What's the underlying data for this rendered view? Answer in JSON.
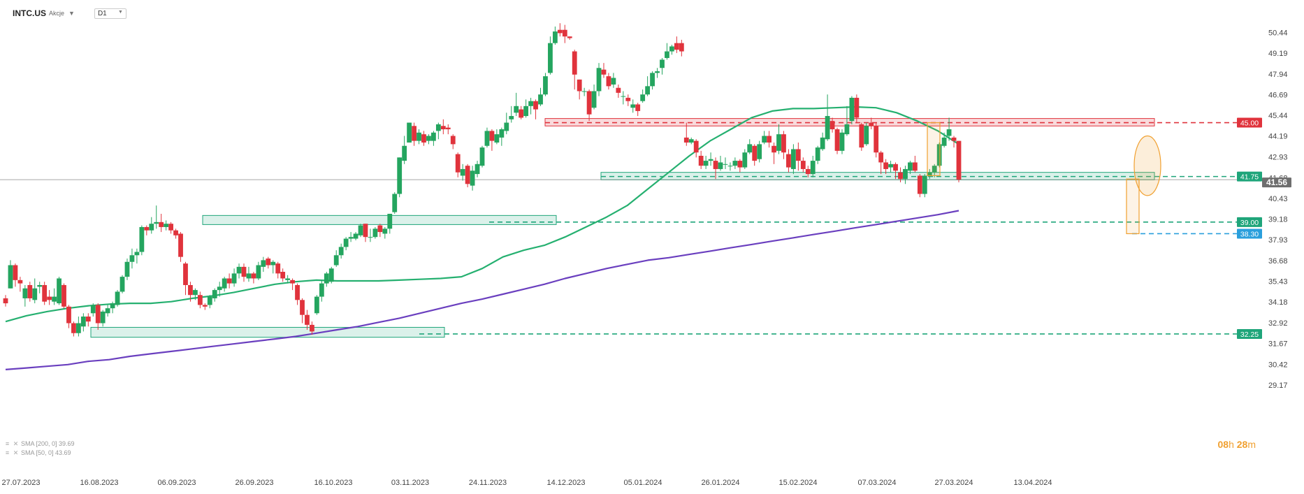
{
  "header": {
    "symbol": "INTC.US",
    "asset_type": "Akcje",
    "timeframe": "D1"
  },
  "legend": [
    {
      "label": "SMA [200, 0] 39.69"
    },
    {
      "label": "SMA [50, 0] 43.69"
    }
  ],
  "timer": {
    "hours": "08",
    "hours_unit": "h",
    "minutes": "28",
    "minutes_unit": "m"
  },
  "colors": {
    "up": "#24a55f",
    "down": "#e0333c",
    "sma50": "#25b070",
    "sma200": "#6a3fbf",
    "resistance": "#e0333c",
    "support": "#1fa57a",
    "target": "#2a9fdc",
    "highlight": "#f0a030"
  },
  "chart_data": {
    "type": "candlestick",
    "y_ticks": [
      29.17,
      30.42,
      31.67,
      32.92,
      34.18,
      35.43,
      36.68,
      37.93,
      39.18,
      40.43,
      41.68,
      42.93,
      44.19,
      45.44,
      46.69,
      47.94,
      49.19,
      50.44
    ],
    "ylim": [
      28.8,
      51.3
    ],
    "x_ticks": [
      "27.07.2023",
      "16.08.2023",
      "06.09.2023",
      "26.09.2023",
      "16.10.2023",
      "03.11.2023",
      "24.11.2023",
      "14.12.2023",
      "05.01.2024",
      "26.01.2024",
      "15.02.2024",
      "07.03.2024",
      "27.03.2024",
      "13.04.2024"
    ],
    "level_labels": [
      "45.00",
      "41.75",
      "41.56",
      "39.00",
      "38.30",
      "32.25"
    ],
    "levels": [
      {
        "value": 45.0,
        "kind": "resistance"
      },
      {
        "value": 41.75,
        "kind": "support"
      },
      {
        "value": 39.0,
        "kind": "support"
      },
      {
        "value": 38.3,
        "kind": "target"
      },
      {
        "value": 32.25,
        "kind": "support"
      }
    ],
    "current_price": 41.56,
    "zones": [
      {
        "kind": "resistance",
        "from": 44.8,
        "to": 45.25
      },
      {
        "kind": "support",
        "from": 41.55,
        "to": 42.0
      },
      {
        "kind": "support",
        "from": 38.85,
        "to": 39.4
      },
      {
        "kind": "support",
        "from": 32.05,
        "to": 32.65
      }
    ],
    "series": [
      {
        "name": "SMA [200, 0]",
        "values": [
          30.1,
          30.2,
          30.3,
          30.4,
          30.6,
          30.7,
          30.9,
          31.05,
          31.2,
          31.35,
          31.5,
          31.65,
          31.8,
          31.95,
          32.1,
          32.3,
          32.5,
          32.7,
          32.95,
          33.2,
          33.5,
          33.8,
          34.1,
          34.35,
          34.65,
          34.95,
          35.25,
          35.6,
          35.9,
          36.2,
          36.45,
          36.7,
          36.85,
          37.05,
          37.25,
          37.45,
          37.65,
          37.85,
          38.05,
          38.25,
          38.45,
          38.65,
          38.85,
          39.05,
          39.25,
          39.45,
          39.69
        ]
      },
      {
        "name": "SMA [50, 0]",
        "values": [
          33.0,
          33.35,
          33.6,
          33.8,
          33.95,
          34.05,
          34.1,
          34.1,
          34.2,
          34.4,
          34.55,
          34.75,
          35.0,
          35.25,
          35.4,
          35.5,
          35.45,
          35.45,
          35.45,
          35.5,
          35.55,
          35.6,
          35.7,
          36.2,
          36.9,
          37.3,
          37.6,
          38.1,
          38.7,
          39.3,
          40.0,
          41.0,
          42.0,
          43.0,
          43.9,
          44.6,
          45.3,
          45.7,
          45.85,
          45.85,
          45.9,
          45.95,
          45.9,
          45.6,
          45.1,
          44.5,
          43.7
        ]
      }
    ],
    "candles": [
      [
        34.4,
        34.1,
        34.6,
        33.9
      ],
      [
        35.0,
        36.4,
        36.7,
        35.0
      ],
      [
        36.4,
        35.5,
        36.5,
        35.1
      ],
      [
        35.5,
        35.3,
        35.7,
        34.8
      ],
      [
        34.4,
        35.0,
        35.2,
        33.9
      ],
      [
        35.2,
        34.4,
        35.4,
        34.2
      ],
      [
        34.3,
        35.0,
        35.6,
        34.1
      ],
      [
        35.1,
        35.2,
        35.4,
        34.7
      ],
      [
        35.2,
        34.2,
        35.4,
        34.0
      ],
      [
        34.5,
        34.3,
        34.9,
        34.0
      ],
      [
        34.2,
        34.5,
        35.0,
        34.0
      ],
      [
        34.1,
        35.6,
        35.7,
        34.0
      ],
      [
        35.2,
        33.9,
        35.3,
        33.8
      ],
      [
        33.9,
        32.9,
        34.0,
        32.6
      ],
      [
        32.9,
        32.3,
        33.0,
        32.1
      ],
      [
        32.3,
        32.9,
        33.3,
        32.1
      ],
      [
        32.7,
        33.3,
        33.5,
        32.4
      ],
      [
        33.3,
        33.0,
        33.5,
        32.7
      ],
      [
        33.5,
        34.0,
        34.1,
        33.3
      ],
      [
        34.0,
        32.9,
        34.1,
        32.5
      ],
      [
        32.9,
        33.6,
        33.7,
        32.7
      ],
      [
        33.5,
        33.8,
        34.0,
        33.3
      ],
      [
        33.8,
        34.1,
        34.2,
        33.5
      ],
      [
        34.0,
        34.8,
        34.9,
        33.9
      ],
      [
        34.8,
        35.7,
        35.8,
        34.7
      ],
      [
        35.7,
        36.6,
        36.8,
        35.5
      ],
      [
        36.6,
        37.0,
        37.4,
        36.2
      ],
      [
        37.0,
        37.2,
        37.4,
        36.5
      ],
      [
        37.2,
        38.7,
        38.8,
        37.0
      ],
      [
        38.7,
        38.5,
        38.8,
        38.2
      ],
      [
        38.5,
        38.9,
        39.3,
        38.3
      ],
      [
        38.9,
        39.0,
        40.0,
        38.6
      ],
      [
        39.0,
        38.7,
        39.5,
        38.4
      ],
      [
        38.7,
        38.9,
        39.1,
        38.5
      ],
      [
        38.9,
        38.5,
        39.0,
        38.3
      ],
      [
        38.5,
        38.2,
        38.6,
        38.0
      ],
      [
        38.3,
        36.9,
        38.4,
        36.6
      ],
      [
        36.5,
        35.2,
        36.6,
        34.6
      ],
      [
        35.2,
        34.6,
        35.4,
        34.2
      ],
      [
        34.6,
        34.9,
        35.0,
        34.3
      ],
      [
        34.6,
        34.0,
        34.8,
        33.8
      ],
      [
        34.0,
        33.9,
        34.1,
        33.7
      ],
      [
        34.0,
        34.5,
        34.6,
        33.8
      ],
      [
        34.4,
        34.9,
        35.0,
        34.2
      ],
      [
        34.9,
        35.1,
        35.4,
        34.5
      ],
      [
        35.0,
        35.6,
        35.7,
        34.8
      ],
      [
        35.6,
        35.3,
        35.9,
        35.0
      ],
      [
        35.3,
        35.9,
        36.2,
        35.1
      ],
      [
        35.9,
        36.3,
        36.5,
        35.6
      ],
      [
        36.3,
        35.7,
        36.5,
        35.4
      ],
      [
        35.6,
        35.9,
        36.3,
        35.4
      ],
      [
        35.9,
        35.6,
        36.0,
        35.3
      ],
      [
        35.6,
        36.4,
        36.6,
        35.5
      ],
      [
        36.3,
        36.7,
        36.9,
        36.0
      ],
      [
        36.8,
        36.4,
        36.9,
        36.2
      ],
      [
        36.4,
        36.6,
        36.7,
        35.9
      ],
      [
        36.5,
        35.9,
        36.6,
        35.6
      ],
      [
        36.0,
        35.6,
        36.2,
        35.4
      ],
      [
        35.5,
        35.6,
        35.8,
        35.3
      ],
      [
        35.5,
        35.3,
        35.6,
        34.9
      ],
      [
        35.2,
        34.3,
        35.3,
        34.0
      ],
      [
        34.3,
        33.4,
        34.4,
        32.9
      ],
      [
        33.4,
        32.8,
        33.7,
        32.5
      ],
      [
        32.8,
        32.4,
        33.0,
        32.2
      ],
      [
        33.5,
        34.5,
        34.6,
        33.4
      ],
      [
        34.5,
        35.3,
        35.5,
        34.2
      ],
      [
        35.3,
        35.9,
        36.0,
        35.1
      ],
      [
        35.4,
        36.2,
        36.3,
        35.3
      ],
      [
        36.4,
        37.0,
        37.3,
        36.3
      ],
      [
        37.0,
        37.5,
        37.7,
        36.8
      ],
      [
        37.5,
        38.0,
        38.1,
        37.3
      ],
      [
        38.0,
        38.1,
        38.4,
        37.8
      ],
      [
        38.0,
        38.3,
        38.4,
        37.9
      ],
      [
        38.2,
        38.8,
        38.9,
        38.1
      ],
      [
        38.9,
        38.1,
        38.9,
        37.8
      ],
      [
        38.1,
        38.1,
        38.6,
        37.8
      ],
      [
        38.1,
        38.6,
        38.7,
        38.0
      ],
      [
        38.8,
        38.4,
        38.9,
        38.1
      ],
      [
        38.3,
        38.6,
        38.7,
        38.0
      ],
      [
        38.6,
        39.5,
        39.5,
        38.3
      ],
      [
        39.6,
        40.7,
        40.8,
        39.5
      ],
      [
        40.7,
        42.9,
        42.9,
        40.5
      ],
      [
        42.7,
        43.6,
        44.2,
        42.5
      ],
      [
        43.8,
        45.0,
        45.0,
        43.8
      ],
      [
        44.8,
        43.9,
        45.0,
        43.6
      ],
      [
        43.9,
        44.4,
        44.6,
        43.7
      ],
      [
        44.3,
        43.8,
        44.5,
        43.6
      ],
      [
        43.9,
        44.2,
        44.3,
        43.7
      ],
      [
        43.9,
        44.4,
        44.5,
        43.6
      ],
      [
        44.5,
        44.9,
        45.0,
        44.0
      ],
      [
        44.8,
        44.6,
        45.2,
        44.3
      ],
      [
        44.7,
        44.6,
        44.9,
        44.3
      ],
      [
        44.2,
        43.7,
        44.3,
        43.4
      ],
      [
        43.1,
        42.0,
        43.2,
        41.7
      ],
      [
        41.8,
        42.2,
        42.5,
        41.5
      ],
      [
        42.4,
        41.3,
        42.5,
        41.1
      ],
      [
        41.2,
        42.1,
        42.4,
        40.9
      ],
      [
        41.9,
        42.5,
        42.7,
        41.7
      ],
      [
        42.4,
        43.5,
        43.6,
        42.3
      ],
      [
        43.6,
        44.5,
        44.7,
        43.5
      ],
      [
        44.5,
        43.9,
        44.6,
        43.3
      ],
      [
        43.8,
        44.3,
        44.6,
        43.7
      ],
      [
        44.1,
        44.6,
        44.7,
        43.6
      ],
      [
        44.5,
        45.0,
        45.6,
        44.3
      ],
      [
        45.2,
        45.4,
        46.0,
        45.0
      ],
      [
        45.6,
        46.0,
        46.8,
        45.4
      ],
      [
        45.8,
        45.3,
        46.0,
        45.2
      ],
      [
        45.4,
        46.0,
        46.4,
        45.3
      ],
      [
        46.0,
        46.3,
        46.5,
        45.5
      ],
      [
        46.3,
        45.8,
        46.4,
        45.2
      ],
      [
        46.1,
        46.7,
        47.1,
        46.0
      ],
      [
        46.7,
        47.8,
        48.0,
        46.6
      ],
      [
        48.0,
        49.8,
        50.2,
        47.9
      ],
      [
        49.8,
        50.5,
        50.8,
        49.7
      ],
      [
        50.6,
        50.4,
        51.0,
        50.2
      ],
      [
        50.6,
        50.2,
        50.9,
        49.8
      ],
      [
        50.2,
        50.1,
        50.2,
        50.0
      ],
      [
        49.3,
        47.9,
        49.4,
        47.0
      ],
      [
        47.6,
        46.9,
        47.6,
        46.4
      ],
      [
        46.9,
        46.9,
        47.1,
        46.6
      ],
      [
        46.9,
        45.5,
        47.0,
        45.1
      ],
      [
        45.9,
        46.9,
        47.3,
        45.8
      ],
      [
        46.9,
        48.3,
        48.6,
        46.6
      ],
      [
        48.2,
        47.9,
        48.6,
        47.7
      ],
      [
        47.8,
        47.2,
        48.0,
        47.0
      ],
      [
        47.3,
        47.7,
        48.0,
        47.1
      ],
      [
        47.1,
        46.8,
        47.3,
        46.5
      ],
      [
        46.6,
        46.6,
        46.9,
        46.1
      ],
      [
        46.5,
        46.3,
        46.7,
        46.0
      ],
      [
        45.9,
        46.1,
        46.4,
        45.6
      ],
      [
        46.1,
        45.7,
        46.2,
        45.4
      ],
      [
        46.3,
        46.7,
        47.0,
        46.2
      ],
      [
        46.7,
        47.2,
        47.8,
        46.6
      ],
      [
        47.2,
        48.0,
        48.1,
        47.0
      ],
      [
        48.0,
        48.1,
        48.3,
        47.7
      ],
      [
        48.3,
        48.8,
        48.9,
        47.9
      ],
      [
        48.9,
        49.3,
        49.8,
        48.8
      ],
      [
        49.3,
        49.6,
        49.7,
        49.1
      ],
      [
        49.8,
        49.4,
        50.2,
        49.2
      ],
      [
        49.8,
        49.3,
        50.0,
        49.0
      ],
      [
        44.1,
        43.8,
        45.0,
        43.6
      ],
      [
        43.8,
        44.0,
        44.1,
        43.7
      ],
      [
        43.9,
        43.2,
        44.0,
        42.9
      ],
      [
        43.0,
        42.4,
        43.3,
        42.2
      ],
      [
        42.4,
        42.7,
        43.0,
        42.2
      ],
      [
        42.7,
        42.8,
        43.2,
        42.4
      ],
      [
        42.7,
        42.2,
        42.9,
        41.6
      ],
      [
        42.2,
        42.6,
        43.0,
        42.1
      ],
      [
        42.5,
        42.5,
        42.9,
        42.2
      ],
      [
        42.4,
        42.4,
        42.6,
        42.1
      ],
      [
        42.4,
        42.7,
        42.9,
        42.2
      ],
      [
        42.7,
        42.3,
        42.8,
        42.0
      ],
      [
        42.3,
        43.2,
        43.4,
        42.2
      ],
      [
        43.2,
        43.7,
        44.0,
        43.1
      ],
      [
        43.6,
        42.7,
        43.7,
        42.4
      ],
      [
        42.8,
        43.7,
        43.9,
        42.6
      ],
      [
        43.8,
        44.2,
        44.5,
        43.7
      ],
      [
        44.2,
        43.8,
        44.5,
        43.5
      ],
      [
        43.6,
        43.2,
        43.8,
        42.5
      ],
      [
        43.3,
        44.3,
        44.9,
        43.1
      ],
      [
        44.3,
        43.2,
        44.5,
        42.8
      ],
      [
        43.1,
        42.3,
        43.4,
        42.0
      ],
      [
        42.2,
        43.4,
        43.7,
        41.9
      ],
      [
        43.4,
        42.7,
        43.8,
        42.1
      ],
      [
        42.7,
        42.2,
        42.9,
        42.0
      ],
      [
        42.2,
        41.9,
        42.4,
        41.7
      ],
      [
        41.9,
        42.7,
        43.0,
        41.7
      ],
      [
        42.7,
        43.5,
        43.6,
        42.5
      ],
      [
        43.4,
        44.1,
        44.4,
        43.3
      ],
      [
        44.0,
        45.4,
        46.7,
        43.9
      ],
      [
        45.1,
        44.6,
        45.3,
        44.4
      ],
      [
        44.6,
        43.3,
        44.7,
        43.1
      ],
      [
        43.3,
        44.4,
        44.6,
        43.1
      ],
      [
        44.3,
        44.9,
        46.0,
        44.2
      ],
      [
        45.1,
        46.5,
        46.6,
        44.9
      ],
      [
        46.5,
        45.3,
        46.7,
        45.0
      ],
      [
        44.9,
        43.5,
        45.0,
        43.3
      ],
      [
        43.7,
        44.8,
        45.0,
        43.6
      ],
      [
        45.0,
        44.8,
        45.3,
        44.6
      ],
      [
        44.8,
        43.2,
        45.0,
        42.9
      ],
      [
        43.2,
        42.6,
        43.3,
        41.9
      ],
      [
        42.6,
        42.2,
        42.8,
        41.9
      ],
      [
        42.3,
        42.5,
        42.7,
        42.0
      ],
      [
        42.5,
        42.1,
        42.6,
        41.6
      ],
      [
        42.0,
        41.6,
        42.3,
        41.4
      ],
      [
        41.6,
        42.2,
        42.4,
        41.3
      ],
      [
        42.1,
        42.6,
        42.7,
        41.9
      ],
      [
        42.6,
        42.1,
        43.0,
        42.0
      ],
      [
        41.8,
        40.7,
        41.9,
        40.5
      ],
      [
        40.7,
        41.8,
        41.9,
        40.5
      ],
      [
        41.8,
        42.0,
        42.2,
        41.6
      ],
      [
        42.0,
        42.4,
        42.5,
        41.7
      ],
      [
        42.4,
        43.7,
        43.8,
        42.3
      ],
      [
        43.6,
        44.1,
        44.4,
        43.5
      ],
      [
        44.2,
        44.6,
        45.3,
        43.9
      ],
      [
        44.1,
        43.9,
        44.2,
        43.5
      ],
      [
        43.9,
        41.56,
        43.9,
        41.4
      ]
    ]
  }
}
